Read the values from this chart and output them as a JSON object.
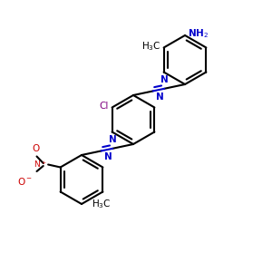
{
  "bg_color": "#ffffff",
  "bond_color": "#000000",
  "azo_color": "#0000cc",
  "cl_color": "#800080",
  "no2_color": "#cc0000",
  "nh2_color": "#0000cc",
  "lw": 1.5,
  "figsize": [
    3.0,
    3.0
  ],
  "dpi": 100,
  "xlim": [
    0,
    10
  ],
  "ylim": [
    0,
    10
  ],
  "r": 0.9
}
